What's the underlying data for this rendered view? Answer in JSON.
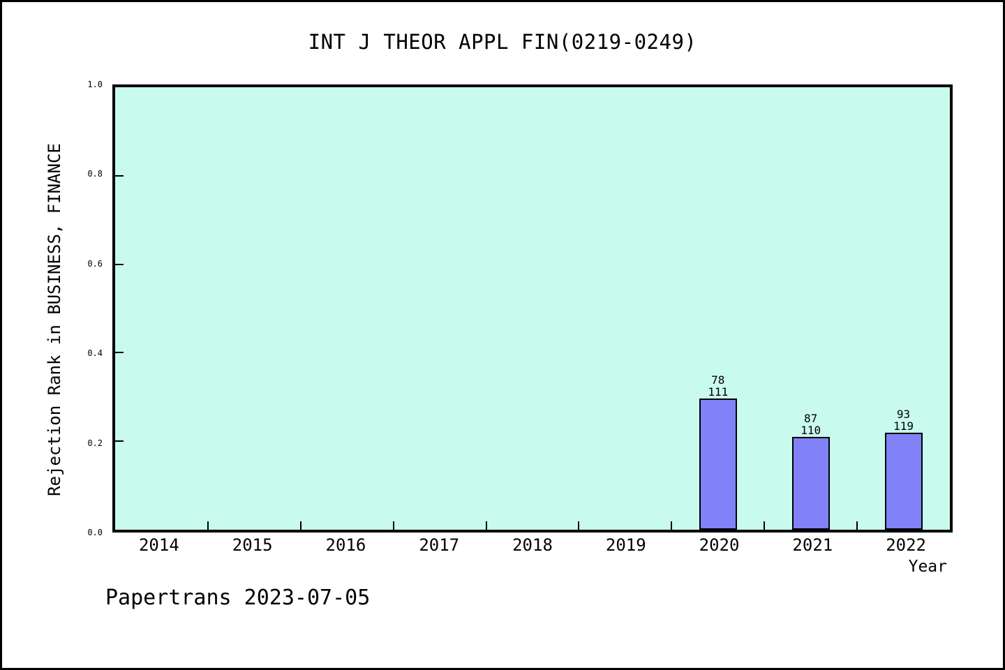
{
  "figure": {
    "background_color": "#ffffff",
    "border_color": "#000000"
  },
  "chart_data": {
    "type": "bar",
    "title": "INT J THEOR APPL FIN(0219-0249)",
    "xlabel": "Year",
    "ylabel": "Rejection Rank in BUSINESS, FINANCE",
    "categories": [
      "2014",
      "2015",
      "2016",
      "2017",
      "2018",
      "2019",
      "2020",
      "2021",
      "2022"
    ],
    "values": [
      null,
      null,
      null,
      null,
      null,
      null,
      0.2973,
      0.2091,
      0.2185
    ],
    "bars": [
      {
        "category": "2020",
        "value": 0.2973,
        "label_top": "78",
        "label_bottom": "111"
      },
      {
        "category": "2021",
        "value": 0.2091,
        "label_top": "87",
        "label_bottom": "110"
      },
      {
        "category": "2022",
        "value": 0.2185,
        "label_top": "93",
        "label_bottom": "119"
      }
    ],
    "ylim": [
      0.0,
      1.0
    ],
    "yticks": [
      "0.0",
      "0.2",
      "0.4",
      "0.6",
      "0.8",
      "1.0"
    ],
    "grid": false,
    "legend_position": "none",
    "plot_background_color": "#c9faee",
    "bar_fill_color": "#8181f8",
    "bar_border_color": "#000000"
  },
  "footer": {
    "text": "Papertrans 2023-07-05"
  }
}
